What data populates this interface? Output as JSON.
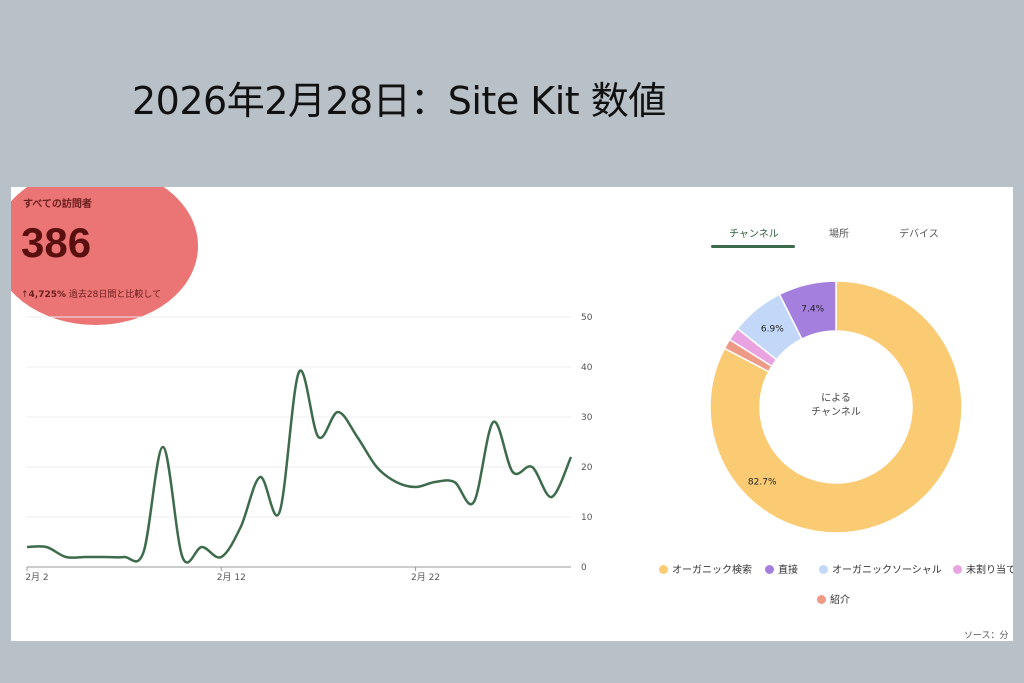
{
  "page": {
    "title": "2026年2月28日：Site Kit 数値"
  },
  "metric": {
    "label": "すべての訪問者",
    "value": "386",
    "change_pct": "4,725%",
    "change_text": "過去28日間と比較して",
    "highlight_color": "#e44646"
  },
  "tabs": [
    {
      "label": "チャンネル",
      "active": true
    },
    {
      "label": "場所",
      "active": false
    },
    {
      "label": "デバイス",
      "active": false
    }
  ],
  "source": {
    "label": "ソース：分"
  },
  "chart_data": [
    {
      "type": "line",
      "x_tick_labels": [
        "2月 2",
        "2月 12",
        "2月 22"
      ],
      "y_ticks": [
        0,
        10,
        20,
        30,
        40,
        50
      ],
      "ylim": [
        0,
        50
      ],
      "grid": true,
      "series": [
        {
          "color": "#3d6b4b",
          "values": [
            4,
            4,
            2,
            2,
            2,
            2,
            3,
            24,
            2,
            4,
            2,
            8,
            18,
            11,
            39,
            26,
            31,
            26,
            20,
            17,
            16,
            17,
            17,
            13,
            29,
            19,
            20,
            14,
            22
          ]
        }
      ]
    },
    {
      "type": "pie",
      "donut": true,
      "center_label": [
        "による",
        "チャンネル"
      ],
      "slices": [
        {
          "label": "オーガニック検索",
          "value": 82.7,
          "value_label": "82.7%",
          "color": "#fbcb73"
        },
        {
          "label": "紹介",
          "value": 1.3,
          "value_label": "",
          "color": "#ef9a87"
        },
        {
          "label": "未割り当て",
          "value": 1.7,
          "value_label": "",
          "color": "#e9a3e0"
        },
        {
          "label": "オーガニックソーシャル",
          "value": 6.9,
          "value_label": "6.9%",
          "color": "#c3d8f8"
        },
        {
          "label": "直接",
          "value": 7.4,
          "value_label": "7.4%",
          "color": "#a47fdd"
        }
      ],
      "legend": [
        {
          "label": "オーガニック検索",
          "color": "#fbcb73"
        },
        {
          "label": "直接",
          "color": "#a47fdd"
        },
        {
          "label": "オーガニックソーシャル",
          "color": "#c3d8f8"
        },
        {
          "label": "未割り当て",
          "color": "#e9a3e0"
        },
        {
          "label": "紹介",
          "color": "#ef9a87"
        }
      ]
    }
  ]
}
